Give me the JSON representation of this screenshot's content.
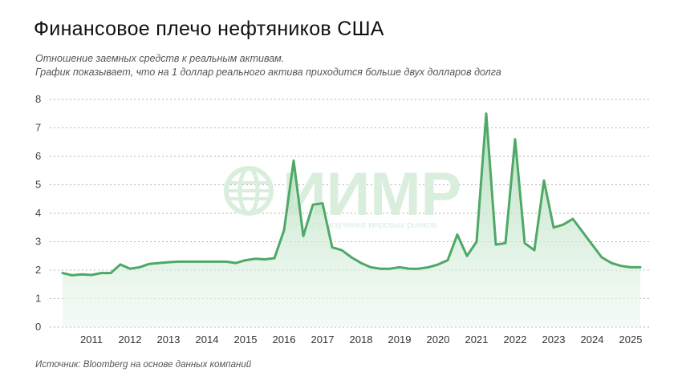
{
  "title": "Финансовое плечо нефтяников США",
  "subtitle_1": "Отношение заемных средств к реальным активам.",
  "subtitle_2": "График показывает, что на 1 доллар реального актива приходится больше двух долларов долга",
  "source": "Источник: Bloomberg на основе данных компаний",
  "watermark": {
    "text": "ИИМР",
    "subtext": "Институт изучения мировых рынков",
    "icon": "globe-icon"
  },
  "colors": {
    "line": "#4ea866",
    "fill_top": "#a9d9b4",
    "fill_bottom": "#eef8f0",
    "grid": "#b5b5b5",
    "watermark": "#d9eedd"
  },
  "chart_data": {
    "type": "area",
    "title": "Финансовое плечо нефтяников США",
    "xlabel": "",
    "ylabel": "",
    "ylim": [
      0,
      8
    ],
    "yticks": [
      0,
      1,
      2,
      3,
      4,
      5,
      6,
      7,
      8
    ],
    "xticks": [
      "2011",
      "2012",
      "2013",
      "2014",
      "2015",
      "2016",
      "2017",
      "2018",
      "2019",
      "2020",
      "2021",
      "2022",
      "2023",
      "2024",
      "2025"
    ],
    "xlim": [
      2010.25,
      2025.25
    ],
    "grid": true,
    "points": [
      [
        2010.25,
        1.9
      ],
      [
        2010.5,
        1.82
      ],
      [
        2010.75,
        1.85
      ],
      [
        2011.0,
        1.83
      ],
      [
        2011.25,
        1.9
      ],
      [
        2011.5,
        1.9
      ],
      [
        2011.75,
        2.2
      ],
      [
        2012.0,
        2.05
      ],
      [
        2012.25,
        2.1
      ],
      [
        2012.5,
        2.22
      ],
      [
        2012.75,
        2.25
      ],
      [
        2013.0,
        2.28
      ],
      [
        2013.25,
        2.3
      ],
      [
        2013.5,
        2.3
      ],
      [
        2013.75,
        2.3
      ],
      [
        2014.0,
        2.3
      ],
      [
        2014.25,
        2.3
      ],
      [
        2014.5,
        2.3
      ],
      [
        2014.75,
        2.25
      ],
      [
        2015.0,
        2.35
      ],
      [
        2015.25,
        2.4
      ],
      [
        2015.5,
        2.38
      ],
      [
        2015.75,
        2.42
      ],
      [
        2016.0,
        3.4
      ],
      [
        2016.25,
        5.85
      ],
      [
        2016.5,
        3.2
      ],
      [
        2016.75,
        4.3
      ],
      [
        2017.0,
        4.35
      ],
      [
        2017.25,
        2.8
      ],
      [
        2017.5,
        2.7
      ],
      [
        2017.75,
        2.45
      ],
      [
        2018.0,
        2.25
      ],
      [
        2018.25,
        2.1
      ],
      [
        2018.5,
        2.05
      ],
      [
        2018.75,
        2.05
      ],
      [
        2019.0,
        2.1
      ],
      [
        2019.25,
        2.05
      ],
      [
        2019.5,
        2.05
      ],
      [
        2019.75,
        2.1
      ],
      [
        2020.0,
        2.2
      ],
      [
        2020.25,
        2.35
      ],
      [
        2020.5,
        3.25
      ],
      [
        2020.75,
        2.5
      ],
      [
        2021.0,
        3.0
      ],
      [
        2021.25,
        7.5
      ],
      [
        2021.5,
        2.9
      ],
      [
        2021.75,
        2.95
      ],
      [
        2022.0,
        6.6
      ],
      [
        2022.25,
        2.95
      ],
      [
        2022.5,
        2.7
      ],
      [
        2022.75,
        5.15
      ],
      [
        2023.0,
        3.5
      ],
      [
        2023.25,
        3.6
      ],
      [
        2023.5,
        3.8
      ],
      [
        2023.75,
        3.35
      ],
      [
        2024.0,
        2.9
      ],
      [
        2024.25,
        2.45
      ],
      [
        2024.5,
        2.25
      ],
      [
        2024.75,
        2.15
      ],
      [
        2025.0,
        2.1
      ],
      [
        2025.25,
        2.1
      ]
    ]
  }
}
